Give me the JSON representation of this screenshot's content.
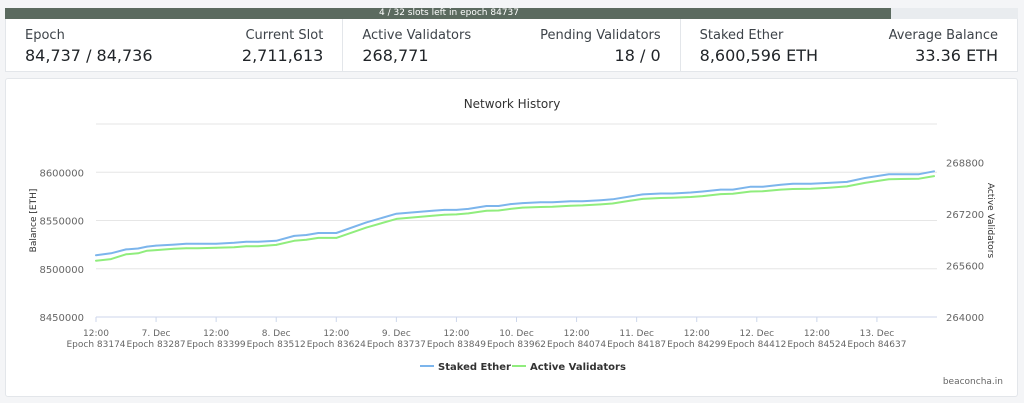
{
  "progress": {
    "label": "4 / 32 slots left in epoch 84737",
    "fraction": 0.875
  },
  "stats": {
    "epoch": {
      "label": "Epoch",
      "value": "84,737 / 84,736"
    },
    "current_slot": {
      "label": "Current Slot",
      "value": "2,711,613"
    },
    "active_validators": {
      "label": "Active Validators",
      "value": "268,771"
    },
    "pending_validators": {
      "label": "Pending Validators",
      "value": "18 / 0"
    },
    "staked_ether": {
      "label": "Staked Ether",
      "value": "8,600,596 ETH"
    },
    "average_balance": {
      "label": "Average Balance",
      "value": "33.36 ETH"
    }
  },
  "chart": {
    "credit": "beaconcha.in",
    "colors": {
      "staked_ether": "#7cb5ec",
      "active_validators": "#90ed7d"
    }
  },
  "chart_data": {
    "type": "line",
    "title": "Network History",
    "ylabel": "Balance [ETH]",
    "y2label": "Active Validators",
    "ylim": [
      8450000,
      8650000
    ],
    "y2lim": [
      264000,
      270000
    ],
    "yticks": [
      "8450000",
      "8500000",
      "8550000",
      "8600000"
    ],
    "y2ticks": [
      "264000",
      "265600",
      "267200",
      "268800"
    ],
    "xlim": [
      0,
      14
    ],
    "xticks": [
      {
        "x": 0,
        "line1": "12:00",
        "line2": "Epoch 83174"
      },
      {
        "x": 1,
        "line1": "7. Dec",
        "line2": "Epoch 83287"
      },
      {
        "x": 2,
        "line1": "12:00",
        "line2": "Epoch 83399"
      },
      {
        "x": 3,
        "line1": "8. Dec",
        "line2": "Epoch 83512"
      },
      {
        "x": 4,
        "line1": "12:00",
        "line2": "Epoch 83624"
      },
      {
        "x": 5,
        "line1": "9. Dec",
        "line2": "Epoch 83737"
      },
      {
        "x": 6,
        "line1": "12:00",
        "line2": "Epoch 83849"
      },
      {
        "x": 7,
        "line1": "10. Dec",
        "line2": "Epoch 83962"
      },
      {
        "x": 8,
        "line1": "12:00",
        "line2": "Epoch 84074"
      },
      {
        "x": 9,
        "line1": "11. Dec",
        "line2": "Epoch 84187"
      },
      {
        "x": 10,
        "line1": "12:00",
        "line2": "Epoch 84299"
      },
      {
        "x": 11,
        "line1": "12. Dec",
        "line2": "Epoch 84412"
      },
      {
        "x": 12,
        "line1": "12:00",
        "line2": "Epoch 84524"
      },
      {
        "x": 13,
        "line1": "13. Dec",
        "line2": "Epoch 84637"
      }
    ],
    "legend": {
      "placement": "bottom"
    },
    "series": [
      {
        "name": "Staked Ether",
        "axis": "left",
        "x": [
          0,
          0.25,
          0.5,
          0.7,
          0.85,
          1.0,
          1.3,
          1.5,
          1.7,
          2.0,
          2.3,
          2.5,
          2.7,
          3.0,
          3.3,
          3.5,
          3.7,
          4.0,
          4.5,
          5.0,
          5.6,
          5.8,
          6.0,
          6.2,
          6.5,
          6.7,
          6.9,
          7.1,
          7.4,
          7.6,
          7.9,
          8.1,
          8.4,
          8.6,
          8.9,
          9.1,
          9.4,
          9.6,
          9.9,
          10.1,
          10.4,
          10.6,
          10.9,
          11.1,
          11.4,
          11.6,
          11.9,
          12.2,
          12.5,
          12.8,
          13.2,
          13.4,
          13.7,
          13.95
        ],
        "values": [
          8514000,
          8516000,
          8520000,
          8521000,
          8523000,
          8524000,
          8525000,
          8526000,
          8526000,
          8526000,
          8527000,
          8528000,
          8528000,
          8529000,
          8534000,
          8535000,
          8537000,
          8537000,
          8548000,
          8557000,
          8560000,
          8561000,
          8561000,
          8562000,
          8565000,
          8565000,
          8567000,
          8568000,
          8569000,
          8569000,
          8570000,
          8570000,
          8571000,
          8572000,
          8575000,
          8577000,
          8578000,
          8578000,
          8579000,
          8580000,
          8582000,
          8582000,
          8585000,
          8585000,
          8587000,
          8588000,
          8588000,
          8589000,
          8590000,
          8594000,
          8598000,
          8598000,
          8598000,
          8601000
        ]
      },
      {
        "name": "Active Validators",
        "axis": "right",
        "x": [
          0,
          0.25,
          0.5,
          0.7,
          0.85,
          1.0,
          1.3,
          1.5,
          1.7,
          2.0,
          2.3,
          2.5,
          2.7,
          3.0,
          3.3,
          3.5,
          3.7,
          4.0,
          4.5,
          5.0,
          5.6,
          5.8,
          6.0,
          6.2,
          6.5,
          6.7,
          6.9,
          7.1,
          7.4,
          7.6,
          7.9,
          8.1,
          8.4,
          8.6,
          8.9,
          9.1,
          9.4,
          9.6,
          9.9,
          10.1,
          10.4,
          10.6,
          10.9,
          11.1,
          11.4,
          11.6,
          11.9,
          12.2,
          12.5,
          12.8,
          13.2,
          13.4,
          13.7,
          13.95
        ],
        "values": [
          265750,
          265800,
          265950,
          265980,
          266060,
          266080,
          266120,
          266140,
          266140,
          266150,
          266170,
          266200,
          266200,
          266240,
          266370,
          266400,
          266460,
          266460,
          266780,
          267050,
          267150,
          267180,
          267190,
          267220,
          267300,
          267310,
          267360,
          267400,
          267420,
          267430,
          267460,
          267470,
          267500,
          267530,
          267620,
          267670,
          267700,
          267710,
          267730,
          267760,
          267820,
          267830,
          267900,
          267910,
          267960,
          267980,
          267990,
          268020,
          268060,
          268170,
          268280,
          268290,
          268300,
          268380
        ]
      }
    ]
  }
}
